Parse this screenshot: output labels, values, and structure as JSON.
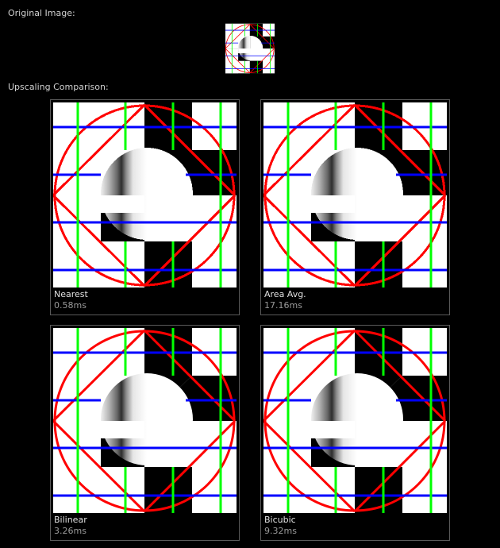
{
  "labels": {
    "original": "Original Image:",
    "comparison": "Upscaling Comparison:"
  },
  "panels": [
    {
      "name": "Nearest",
      "time": "0.58ms",
      "render": "pixelated"
    },
    {
      "name": "Area Avg.",
      "time": "17.16ms",
      "render": "pixelated"
    },
    {
      "name": "Bilinear",
      "time": "3.26ms",
      "render": "smooth"
    },
    {
      "name": "Bicubic",
      "time": "9.32ms",
      "render": "smooth"
    }
  ],
  "colors": {
    "background": "#000000",
    "circle": "#ff0000",
    "horizontal_lines": "#0000ff",
    "vertical_lines": "#00ff00"
  }
}
